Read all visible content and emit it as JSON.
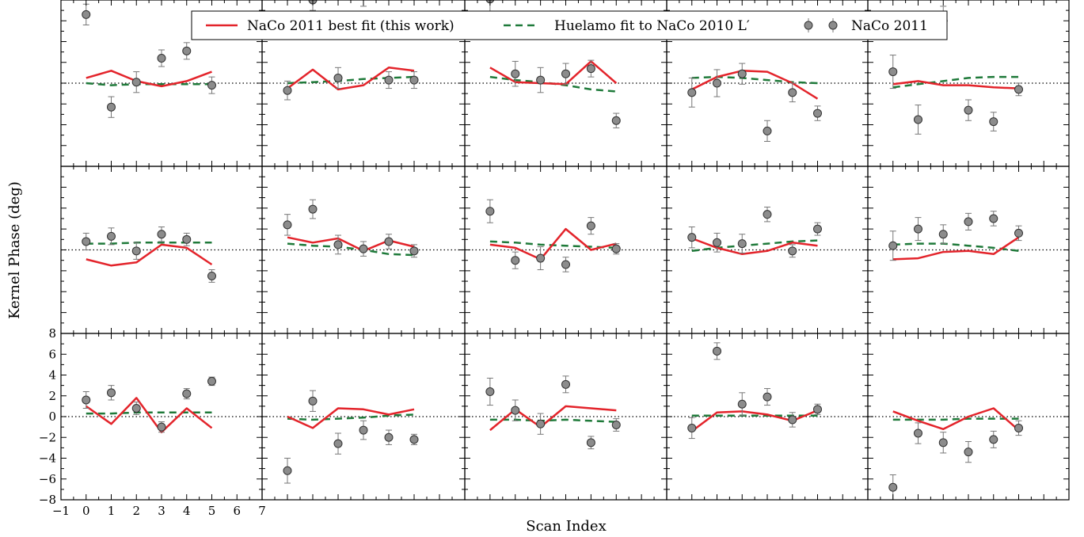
{
  "chart_data": {
    "type": "scatter",
    "title": "",
    "xlabel": "Scan Index",
    "ylabel": "Kernel Phase (deg)",
    "xlim": [
      -1,
      7
    ],
    "ylim": [
      -8,
      8
    ],
    "x_ticks": [
      -1,
      0,
      1,
      2,
      3,
      4,
      5,
      6,
      7
    ],
    "x_tick_labels": [
      "−1",
      "0",
      "1",
      "2",
      "3",
      "4",
      "5",
      "6",
      "7"
    ],
    "y_ticks": [
      -8,
      -6,
      -4,
      -2,
      0,
      2,
      4,
      6,
      8
    ],
    "y_tick_labels": [
      "−8",
      "−6",
      "−4",
      "−2",
      "0",
      "2",
      "4",
      "6",
      "8"
    ],
    "grid": false,
    "reference_line": 0,
    "legend": {
      "placement": "top-center",
      "entries": [
        {
          "label": "NaCo 2011 best fit (this work)",
          "style": "solid",
          "color": "#e3242b"
        },
        {
          "label": "Huelamo fit to NaCo 2010 L′",
          "style": "dashed",
          "color": "#1f7a3a"
        },
        {
          "label": "NaCo 2011",
          "style": "marker",
          "color": "#8c8c8c"
        }
      ]
    },
    "colors": {
      "fit": "#e3242b",
      "huelamo": "#1f7a3a",
      "marker": "#8c8c8c",
      "error": "#777777"
    },
    "grid_layout": {
      "rows": 3,
      "cols": 5
    },
    "panels": [
      {
        "x": [
          0,
          1,
          2,
          3,
          4,
          5
        ],
        "data": [
          6.6,
          -2.3,
          0.1,
          2.4,
          3.1,
          -0.2
        ],
        "err": [
          1.0,
          1.0,
          1.0,
          0.8,
          0.8,
          0.8
        ],
        "fit": [
          0.5,
          1.2,
          0.2,
          -0.3,
          0.2,
          1.1
        ],
        "huelamo": [
          0,
          -0.2,
          -0.1,
          -0.1,
          -0.1,
          -0.1
        ]
      },
      {
        "x": [
          0,
          1,
          2,
          3,
          4,
          5
        ],
        "data": [
          -0.7,
          8.0,
          0.5,
          8.4,
          0.3,
          0.3
        ],
        "err": [
          0.9,
          1.0,
          1.0,
          1.0,
          0.8,
          0.8
        ],
        "fit": [
          -0.5,
          1.3,
          -0.6,
          -0.2,
          1.5,
          1.2
        ],
        "huelamo": [
          0,
          0.1,
          0.2,
          0.4,
          0.5,
          0.6
        ]
      },
      {
        "x": [
          0,
          1,
          2,
          3,
          4,
          5
        ],
        "data": [
          8.1,
          0.9,
          0.3,
          0.9,
          1.4,
          -3.6
        ],
        "err": [
          1.2,
          1.2,
          1.2,
          1.0,
          0.8,
          0.7
        ],
        "fit": [
          1.5,
          0.1,
          0,
          -0.1,
          2.1,
          0
        ],
        "huelamo": [
          0.6,
          0.3,
          0.1,
          -0.2,
          -0.6,
          -0.8
        ]
      },
      {
        "x": [
          0,
          1,
          2,
          3,
          4,
          5
        ],
        "data": [
          -0.9,
          0,
          0.9,
          -4.6,
          -0.9,
          -2.9
        ],
        "err": [
          1.4,
          1.3,
          1.0,
          1.0,
          0.9,
          0.7
        ],
        "fit": [
          -0.6,
          0.6,
          1.2,
          1.1,
          0,
          -1.5
        ],
        "huelamo": [
          0.5,
          0.6,
          0.5,
          0.3,
          0.1,
          0
        ]
      },
      {
        "x": [
          0,
          1,
          2,
          3,
          4,
          5
        ],
        "data": [
          1.1,
          -3.5,
          6.0,
          -2.6,
          -3.7,
          -0.6
        ],
        "err": [
          1.6,
          1.4,
          1.4,
          1.0,
          0.9,
          0.6
        ],
        "fit": [
          -0.1,
          0.2,
          -0.2,
          -0.2,
          -0.4,
          -0.5
        ],
        "huelamo": [
          -0.4,
          -0.1,
          0.2,
          0.5,
          0.6,
          0.6
        ]
      },
      {
        "x": [
          0,
          1,
          2,
          3,
          4,
          5
        ],
        "data": [
          0.8,
          1.3,
          -0.1,
          1.5,
          1.0,
          -2.5
        ],
        "err": [
          0.8,
          0.8,
          0.8,
          0.7,
          0.6,
          0.6
        ],
        "fit": [
          -0.9,
          -1.5,
          -1.2,
          0.5,
          0.2,
          -1.4
        ],
        "huelamo": [
          0.6,
          0.6,
          0.7,
          0.7,
          0.7,
          0.7
        ]
      },
      {
        "x": [
          0,
          1,
          2,
          3,
          4,
          5
        ],
        "data": [
          2.4,
          3.9,
          0.5,
          0.1,
          0.8,
          -0.1
        ],
        "err": [
          1.0,
          0.9,
          0.9,
          0.7,
          0.7,
          0.6
        ],
        "fit": [
          1.2,
          0.7,
          1.1,
          -0.1,
          0.9,
          0.3
        ],
        "huelamo": [
          0.6,
          0.4,
          0.3,
          0,
          -0.4,
          -0.5
        ]
      },
      {
        "x": [
          0,
          1,
          2,
          3,
          4,
          5
        ],
        "data": [
          3.7,
          -1,
          -0.8,
          -1.4,
          2.3,
          0.1
        ],
        "err": [
          1.1,
          0.8,
          1.1,
          0.7,
          0.8,
          0.5
        ],
        "fit": [
          0.5,
          0.2,
          -0.9,
          2.0,
          0,
          0.6
        ],
        "huelamo": [
          0.8,
          0.7,
          0.5,
          0.4,
          0.3,
          0.2
        ]
      },
      {
        "x": [
          0,
          1,
          2,
          3,
          4,
          5
        ],
        "data": [
          1.2,
          0.7,
          0.6,
          3.4,
          -0.1,
          2.0
        ],
        "err": [
          1.0,
          0.9,
          0.9,
          0.7,
          0.6,
          0.6
        ],
        "fit": [
          1.1,
          0.2,
          -0.4,
          -0.1,
          0.7,
          0.4
        ],
        "huelamo": [
          -0.1,
          0.2,
          0.4,
          0.6,
          0.8,
          0.9
        ]
      },
      {
        "x": [
          0,
          1,
          2,
          3,
          4,
          5
        ],
        "data": [
          0.4,
          2.0,
          1.5,
          2.7,
          3.0,
          1.6
        ],
        "err": [
          1.4,
          1.1,
          0.9,
          0.8,
          0.7,
          0.7
        ],
        "fit": [
          -0.9,
          -0.8,
          -0.2,
          -0.1,
          -0.4,
          1.2
        ],
        "huelamo": [
          0.5,
          0.6,
          0.6,
          0.4,
          0.2,
          -0.1
        ]
      },
      {
        "x": [
          0,
          1,
          2,
          3,
          4,
          5
        ],
        "data": [
          1.6,
          2.3,
          0.8,
          -1.0,
          2.2,
          3.4
        ],
        "err": [
          0.8,
          0.7,
          0.6,
          0.5,
          0.5,
          0.4
        ],
        "fit": [
          1.0,
          -0.7,
          1.8,
          -1.5,
          0.8,
          -1.1
        ],
        "huelamo": [
          0.3,
          0.3,
          0.4,
          0.4,
          0.4,
          0.4
        ]
      },
      {
        "x": [
          0,
          1,
          2,
          3,
          4,
          5
        ],
        "data": [
          -5.2,
          1.5,
          -2.6,
          -1.3,
          -2.0,
          -2.2
        ],
        "err": [
          1.2,
          1.0,
          1.0,
          0.9,
          0.7,
          0.5
        ],
        "fit": [
          0,
          -1.1,
          0.8,
          0.7,
          0.2,
          0.7
        ],
        "huelamo": [
          -0.2,
          -0.3,
          -0.2,
          -0.1,
          0.1,
          0.2
        ]
      },
      {
        "x": [
          0,
          1,
          2,
          3,
          4,
          5
        ],
        "data": [
          2.4,
          0.6,
          -0.7,
          3.1,
          -2.5,
          -0.8
        ],
        "err": [
          1.3,
          1.0,
          1.0,
          0.8,
          0.6,
          0.6
        ],
        "fit": [
          -1.3,
          0.7,
          -1.0,
          1.0,
          0.8,
          0.6
        ],
        "huelamo": [
          -0.3,
          -0.3,
          -0.4,
          -0.3,
          -0.4,
          -0.5
        ]
      },
      {
        "x": [
          0,
          1,
          2,
          3,
          4,
          5
        ],
        "data": [
          -1.1,
          6.3,
          1.2,
          1.9,
          -0.3,
          0.7
        ],
        "err": [
          1.0,
          0.8,
          1.1,
          0.8,
          0.7,
          0.5
        ],
        "fit": [
          -1.4,
          0.4,
          0.5,
          0.2,
          -0.4,
          0.6
        ],
        "huelamo": [
          0.1,
          0.1,
          0.1,
          0.1,
          0.1,
          0.1
        ]
      },
      {
        "x": [
          0,
          1,
          2,
          3,
          4,
          5
        ],
        "data": [
          -6.8,
          -1.6,
          -2.5,
          -3.4,
          -2.2,
          -1.1
        ],
        "err": [
          1.2,
          1.0,
          1.0,
          1.0,
          0.8,
          0.7
        ],
        "fit": [
          0.5,
          -0.4,
          -1.2,
          0,
          0.8,
          -1.3
        ],
        "huelamo": [
          -0.3,
          -0.3,
          -0.3,
          -0.2,
          -0.2,
          -0.2
        ]
      }
    ]
  }
}
